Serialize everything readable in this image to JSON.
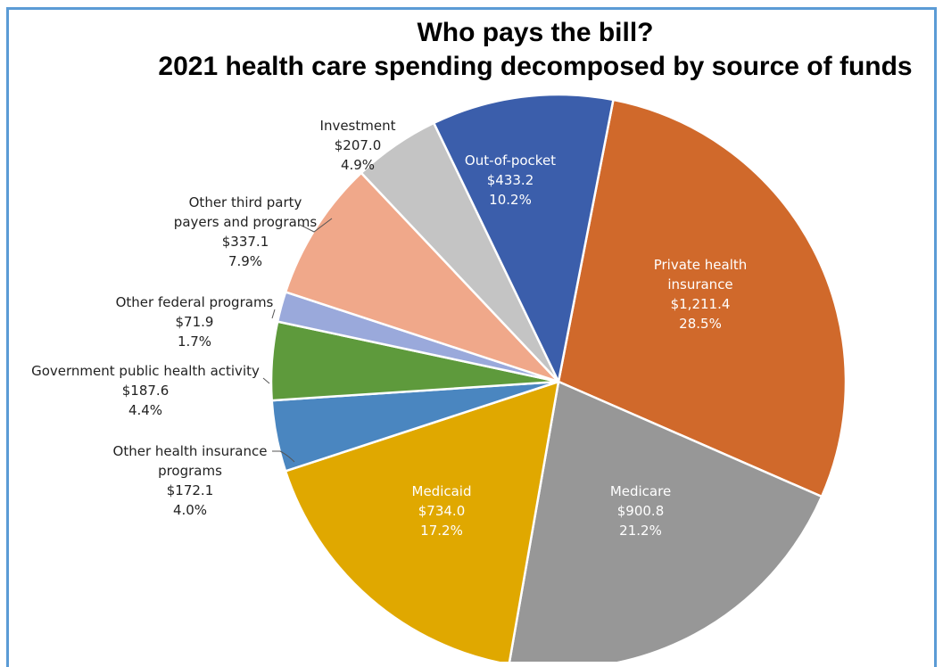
{
  "chart_data": {
    "type": "pie",
    "title": "Who pays the bill?",
    "subtitle": "2021 health care spending decomposed by source of funds",
    "slices": [
      {
        "label": [
          "Private health",
          "insurance"
        ],
        "value": "$1,211.4",
        "percent": "28.5%",
        "fraction": 0.285,
        "color": "#d0692b",
        "text_color": "#ffffff",
        "label_inside": true
      },
      {
        "label": [
          "Medicare"
        ],
        "value": "$900.8",
        "percent": "21.2%",
        "fraction": 0.212,
        "color": "#979797",
        "text_color": "#ffffff",
        "label_inside": true
      },
      {
        "label": [
          "Medicaid"
        ],
        "value": "$734.0",
        "percent": "17.2%",
        "fraction": 0.172,
        "color": "#e0a800",
        "text_color": "#ffffff",
        "label_inside": true
      },
      {
        "label": [
          "Other health insurance",
          "programs"
        ],
        "value": "$172.1",
        "percent": "4.0%",
        "fraction": 0.04,
        "color": "#4a86c0",
        "text_color": "#222222",
        "label_inside": false
      },
      {
        "label": [
          "Government public health activity"
        ],
        "value": "$187.6",
        "percent": "4.4%",
        "fraction": 0.044,
        "color": "#5e9a3c",
        "text_color": "#222222",
        "label_inside": false
      },
      {
        "label": [
          "Other federal programs"
        ],
        "value": "$71.9",
        "percent": "1.7%",
        "fraction": 0.017,
        "color": "#9aa9db",
        "text_color": "#222222",
        "label_inside": false
      },
      {
        "label": [
          "Other third party",
          "payers and programs"
        ],
        "value": "$337.1",
        "percent": "7.9%",
        "fraction": 0.079,
        "color": "#f0a88a",
        "text_color": "#222222",
        "label_inside": false
      },
      {
        "label": [
          "Investment"
        ],
        "value": "$207.0",
        "percent": "4.9%",
        "fraction": 0.049,
        "color": "#c4c4c4",
        "text_color": "#222222",
        "label_inside": false
      },
      {
        "label": [
          "Out-of-pocket"
        ],
        "value": "$433.2",
        "percent": "10.2%",
        "fraction": 0.102,
        "color": "#3b5eab",
        "text_color": "#ffffff",
        "label_inside": true
      }
    ]
  }
}
